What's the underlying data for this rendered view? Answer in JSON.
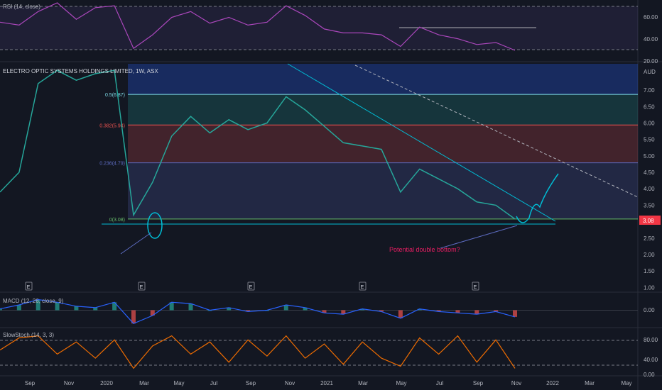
{
  "chart_data": {
    "type": "line",
    "title": "ELECTRO OPTIC SYSTEMS HOLDINGS LIMITED, 1W, ASX",
    "currency": "AUD",
    "last_price": "3.08",
    "x_ticks": [
      "Sep",
      "Nov",
      "2020",
      "Mar",
      "May",
      "Jul",
      "Sep",
      "Nov",
      "2021",
      "Mar",
      "May",
      "Jul",
      "Sep",
      "Nov",
      "2022",
      "Mar",
      "May"
    ],
    "price_axis": {
      "ticks": [
        "7.00",
        "6.50",
        "6.00",
        "5.50",
        "5.00",
        "4.50",
        "4.00",
        "3.50",
        "2.50",
        "2.00",
        "1.50",
        "1.00"
      ],
      "range": [
        0.9,
        7.8
      ]
    },
    "fib_levels": [
      {
        "label": "0.5(6.87)",
        "value": 6.87,
        "color": "#80deea"
      },
      {
        "label": "0.382(5.94)",
        "value": 5.94,
        "color": "#ef5350"
      },
      {
        "label": "0.236(4.79)",
        "value": 4.79,
        "color": "#5c6bc0"
      },
      {
        "label": "0(3.08)",
        "value": 3.08,
        "color": "#66bb6a"
      }
    ],
    "price_series": {
      "x": [
        "2019-08",
        "2019-09",
        "2019-10",
        "2019-11",
        "2019-12",
        "2020-01",
        "2020-02",
        "2020-03",
        "2020-04",
        "2020-05",
        "2020-06",
        "2020-07",
        "2020-08",
        "2020-09",
        "2020-10",
        "2020-11",
        "2020-12",
        "2021-01",
        "2021-02",
        "2021-03",
        "2021-04",
        "2021-05",
        "2021-06",
        "2021-07",
        "2021-08",
        "2021-09",
        "2021-10",
        "2021-11"
      ],
      "values": [
        3.9,
        4.5,
        7.2,
        7.6,
        7.3,
        7.5,
        7.6,
        3.2,
        4.2,
        5.6,
        6.2,
        5.7,
        6.1,
        5.8,
        6.0,
        6.8,
        6.4,
        5.9,
        5.4,
        5.3,
        5.2,
        3.9,
        4.6,
        4.3,
        4.0,
        3.6,
        3.5,
        3.08
      ]
    },
    "annotations": [
      "Potential double bottom?"
    ],
    "earnings_markers": [
      "E",
      "E",
      "E",
      "E",
      "E"
    ],
    "indicators": [
      {
        "name": "RSI (14, close)",
        "ticks": [
          "60.00",
          "40.00",
          "20.00"
        ],
        "range": [
          15,
          75
        ],
        "color": "#ab47bc",
        "values": [
          55,
          52,
          66,
          75,
          58,
          70,
          72,
          28,
          42,
          60,
          66,
          54,
          60,
          52,
          55,
          72,
          62,
          48,
          44,
          44,
          42,
          30,
          50,
          42,
          38,
          32,
          34,
          26
        ]
      },
      {
        "name": "MACD (12, 26, close, 9)",
        "ticks": [
          "0.00"
        ],
        "range": [
          -0.6,
          0.6
        ],
        "color": "#2962ff",
        "values": [
          0.05,
          0.2,
          0.4,
          0.3,
          0.15,
          0.1,
          0.3,
          -0.5,
          -0.2,
          0.3,
          0.25,
          0.0,
          0.1,
          -0.05,
          0.0,
          0.2,
          0.1,
          -0.1,
          -0.15,
          0.05,
          -0.05,
          -0.3,
          0.05,
          -0.05,
          -0.1,
          -0.15,
          -0.05,
          -0.25
        ]
      },
      {
        "name": "SlowStoch (14, 3, 3)",
        "ticks": [
          "80.00",
          "40.00",
          "0.00"
        ],
        "range": [
          -10,
          100
        ],
        "color": "#ef6c00",
        "values": [
          50,
          80,
          85,
          40,
          70,
          30,
          75,
          5,
          60,
          85,
          40,
          70,
          20,
          75,
          35,
          85,
          30,
          65,
          15,
          70,
          30,
          10,
          80,
          40,
          85,
          20,
          75,
          5
        ]
      }
    ]
  }
}
